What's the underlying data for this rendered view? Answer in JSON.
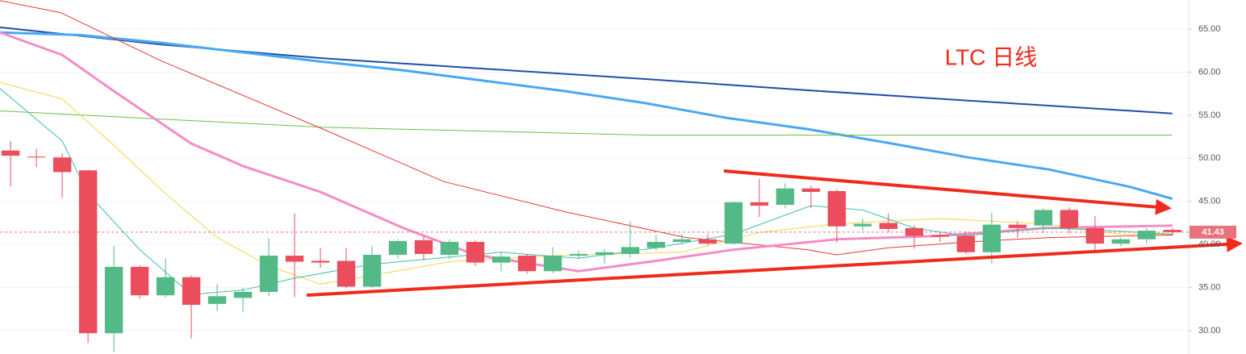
{
  "chart_data": {
    "type": "candlestick",
    "annotation": "LTC 日线",
    "xlim": [
      -0.41,
      45.63
    ],
    "ylim": [
      27.29,
      68.37
    ],
    "yticks": [
      {
        "value": 30,
        "label": "30.00"
      },
      {
        "value": 35,
        "label": "35.00"
      },
      {
        "value": 40,
        "label": "40.00"
      },
      {
        "value": 45,
        "label": "45.00"
      },
      {
        "value": 50,
        "label": "50.00"
      },
      {
        "value": 55,
        "label": "55.00"
      },
      {
        "value": 60,
        "label": "60.00"
      },
      {
        "value": 65,
        "label": "65.00"
      }
    ],
    "grid": true,
    "up_color": "#53b987",
    "down_color": "#eb4d5c",
    "last_price": 41.43,
    "last_price_color": "#e8737b",
    "candles": {
      "open": [
        50.9,
        50.2,
        50.1,
        48.6,
        29.7,
        37.4,
        34.1,
        36.2,
        33.1,
        33.8,
        34.5,
        38.7,
        38.1,
        38.1,
        35.1,
        38.8,
        40.5,
        38.8,
        40.3,
        37.9,
        38.7,
        36.9,
        38.7,
        38.8,
        38.9,
        39.6,
        40.3,
        40.6,
        40.1,
        44.9,
        44.6,
        46.5,
        46.2,
        42.1,
        42.5,
        41.9,
        41.1,
        41.0,
        39.1,
        42.3,
        42.2,
        44.0,
        41.9,
        40.1,
        40.6,
        41.7
      ],
      "high": [
        52.0,
        51.1,
        50.6,
        48.7,
        39.8,
        37.6,
        38.4,
        36.4,
        35.4,
        35.0,
        40.7,
        43.6,
        39.6,
        39.6,
        39.8,
        40.6,
        40.9,
        40.6,
        40.5,
        39.2,
        38.9,
        39.7,
        39.3,
        39.5,
        42.7,
        41.1,
        41.2,
        41.2,
        45.0,
        47.6,
        47.1,
        46.8,
        46.4,
        43.0,
        43.6,
        42.2,
        41.5,
        41.5,
        43.7,
        42.7,
        44.2,
        44.3,
        43.3,
        40.8,
        41.9,
        41.9
      ],
      "low": [
        46.7,
        49.0,
        45.4,
        28.6,
        27.5,
        33.7,
        33.8,
        29.1,
        32.3,
        32.2,
        34.0,
        33.9,
        37.3,
        34.9,
        34.9,
        38.4,
        38.2,
        38.3,
        37.5,
        36.9,
        36.6,
        36.7,
        38.3,
        37.8,
        38.5,
        39.3,
        40.0,
        39.9,
        40.0,
        43.2,
        44.2,
        44.2,
        40.2,
        41.6,
        41.4,
        39.5,
        40.3,
        38.9,
        37.8,
        40.8,
        41.3,
        41.2,
        39.2,
        39.8,
        40.1,
        41.0
      ],
      "close": [
        50.3,
        50.1,
        48.4,
        29.7,
        37.4,
        34.1,
        36.2,
        33.0,
        34.0,
        34.5,
        38.7,
        38.0,
        37.9,
        35.1,
        38.8,
        40.4,
        38.9,
        40.3,
        37.9,
        38.6,
        36.9,
        38.7,
        38.9,
        39.1,
        39.7,
        40.3,
        40.6,
        40.1,
        44.9,
        44.5,
        46.5,
        46.1,
        42.1,
        42.4,
        41.8,
        41.0,
        40.9,
        39.1,
        42.3,
        41.9,
        44.0,
        41.9,
        40.1,
        40.6,
        41.6,
        41.43
      ]
    },
    "series": [
      {
        "color": "#1f4fa6",
        "width": 2,
        "x": [
          -0.41,
          5.84,
          12.09,
          18.34,
          24.59,
          30.84,
          37.09,
          45
        ],
        "values": [
          65.2,
          63.2,
          61.6,
          60.4,
          59.2,
          57.9,
          56.7,
          55.2
        ]
      },
      {
        "color": "#4aa8f0",
        "width": 3,
        "x": [
          -0.41,
          2.72,
          5.84,
          8.97,
          12.09,
          15.22,
          18.34,
          21.47,
          24.59,
          27.72,
          30.84,
          33.97,
          37.09,
          40.22,
          43.34,
          45
        ],
        "values": [
          64.6,
          64.3,
          63.4,
          62.3,
          61.2,
          60.2,
          59.0,
          57.8,
          56.4,
          54.7,
          53.4,
          51.8,
          50.1,
          48.7,
          46.7,
          45.3
        ]
      },
      {
        "color": "#6cbf45",
        "width": 1,
        "x": [
          -0.41,
          12.09,
          24.59,
          45
        ],
        "values": [
          55.5,
          53.6,
          52.7,
          52.7
        ]
      },
      {
        "color": "#e53935",
        "width": 1,
        "x": [
          -0.41,
          1.94,
          5.84,
          12.09,
          16.78,
          21.47,
          26.16,
          30.84,
          32,
          33.97,
          37.09,
          40.22,
          45
        ],
        "values": [
          68.3,
          66.9,
          61.3,
          53.4,
          47.3,
          43.8,
          40.8,
          39.4,
          38.8,
          39.6,
          40.3,
          40.8,
          41.1
        ]
      },
      {
        "color": "#f48cc6",
        "width": 3,
        "x": [
          -0.41,
          2,
          4,
          7,
          9,
          12,
          15.22,
          18,
          22,
          25,
          28,
          32,
          36,
          40,
          45
        ],
        "values": [
          64.6,
          62.0,
          57.8,
          51.7,
          49.1,
          46.1,
          41.9,
          38.8,
          36.9,
          38.1,
          39.4,
          40.6,
          41.0,
          41.9,
          42.2
        ]
      },
      {
        "color": "#f3d64a",
        "width": 1,
        "x": [
          -0.41,
          2,
          4,
          6,
          8,
          10,
          12,
          14,
          17,
          21,
          26,
          29,
          32,
          36,
          40,
          43,
          45
        ],
        "values": [
          58.8,
          56.9,
          51.5,
          45.9,
          40.8,
          37.5,
          35.4,
          36.4,
          38.0,
          38.7,
          39.1,
          41.4,
          42.4,
          43.0,
          42.4,
          41.2,
          41.2
        ]
      },
      {
        "color": "#3cbfa8",
        "width": 1,
        "x": [
          -0.41,
          2,
          3,
          5,
          7,
          9,
          11,
          14,
          19,
          22,
          25,
          28,
          31,
          33,
          35,
          37,
          40,
          42,
          45
        ],
        "values": [
          58.1,
          52.0,
          45.9,
          39.4,
          34.2,
          34.7,
          36.1,
          37.7,
          39.1,
          38.4,
          39.6,
          41.2,
          44.5,
          44.0,
          41.9,
          41.0,
          41.9,
          41.7,
          41.2
        ]
      }
    ]
  }
}
